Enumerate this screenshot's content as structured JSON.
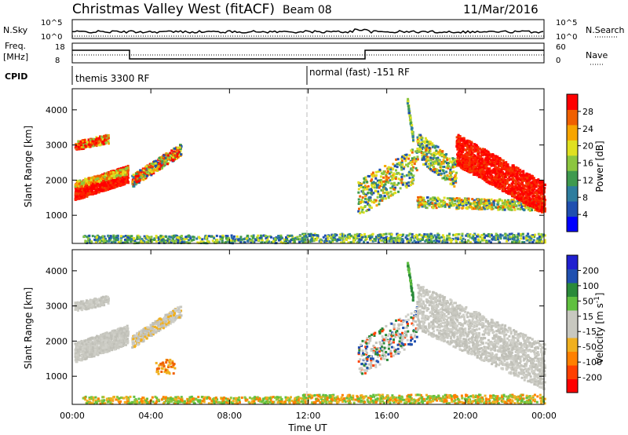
{
  "header": {
    "site": "Christmas Valley West (fitACF)",
    "beam": "Beam 08",
    "date": "11/Mar/2016"
  },
  "top_panels": {
    "noise_label": "N.Sky",
    "noise_right_label": "N.Search",
    "noise_ticks_left": [
      "10^5",
      "10^0"
    ],
    "noise_ticks_right": [
      "10^5",
      "10^0"
    ],
    "freq_label": "Freq.",
    "freq_unit": "[MHz]",
    "freq_ticks": [
      "18",
      "8"
    ],
    "nave_label": "Nave",
    "nave_ticks": [
      "60",
      "0"
    ],
    "cpid_label": "CPID",
    "cpid_segments": [
      "themis 3300 RF",
      "normal (fast) -151 RF"
    ]
  },
  "chart_data": [
    {
      "type": "heatmap",
      "name": "power",
      "xlabel": "",
      "ylabel": "Slant Range [km]",
      "y_ticks": [
        "1000",
        "2000",
        "3000",
        "4000"
      ],
      "ylim": [
        200,
        4600
      ],
      "x_ticks": [
        "00:00",
        "04:00",
        "08:00",
        "12:00",
        "16:00",
        "20:00",
        "00:00"
      ],
      "xlim_hours": [
        0,
        24
      ],
      "colorbar": {
        "label": "Power [dB]",
        "ticks": [
          "28",
          "24",
          "20",
          "16",
          "12",
          "8",
          "4"
        ],
        "colors": [
          "#0000ff",
          "#1f4fb0",
          "#2e7d9e",
          "#3f9a4f",
          "#8cc63f",
          "#e0e020",
          "#f7a500",
          "#f06000",
          "#ff0000"
        ]
      }
    },
    {
      "type": "heatmap",
      "name": "velocity",
      "xlabel": "Time UT",
      "ylabel": "Slant Range [km]",
      "y_ticks": [
        "1000",
        "2000",
        "3000",
        "4000"
      ],
      "ylim": [
        200,
        4600
      ],
      "x_ticks": [
        "00:00",
        "04:00",
        "08:00",
        "12:00",
        "16:00",
        "20:00",
        "00:00"
      ],
      "xlim_hours": [
        0,
        24
      ],
      "colorbar": {
        "label": "Velocity [m s^-1]",
        "ticks": [
          "200",
          "100",
          "50",
          "15",
          "-15",
          "-50",
          "-100",
          "-200"
        ],
        "colors": [
          "#ff0000",
          "#ff4000",
          "#ff8000",
          "#f0b020",
          "#c8c8c0",
          "#c8c8c0",
          "#60c040",
          "#2a8a3a",
          "#2050b0",
          "#2020d0"
        ]
      }
    }
  ]
}
